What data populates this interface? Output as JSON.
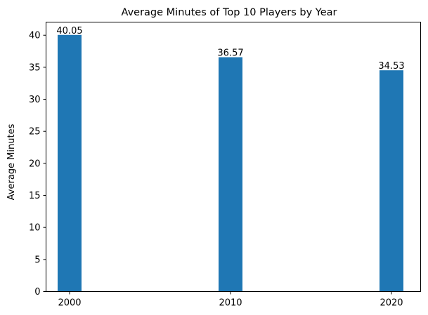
{
  "chart_data": {
    "type": "bar",
    "title": "Average Minutes of Top 10 Players by Year",
    "xlabel": "",
    "ylabel": "Average Minutes",
    "categories": [
      "2000",
      "2010",
      "2020"
    ],
    "values": [
      40.05,
      36.57,
      34.53
    ],
    "value_labels": [
      "40.05",
      "36.57",
      "34.53"
    ],
    "ylim": [
      0,
      42.05
    ],
    "yticks": [
      0,
      5,
      10,
      15,
      20,
      25,
      30,
      35,
      40
    ],
    "ytick_labels": [
      "0",
      "5",
      "10",
      "15",
      "20",
      "25",
      "30",
      "35",
      "40"
    ],
    "grid": false,
    "legend": "none",
    "bar_color": "#1f77b4"
  }
}
